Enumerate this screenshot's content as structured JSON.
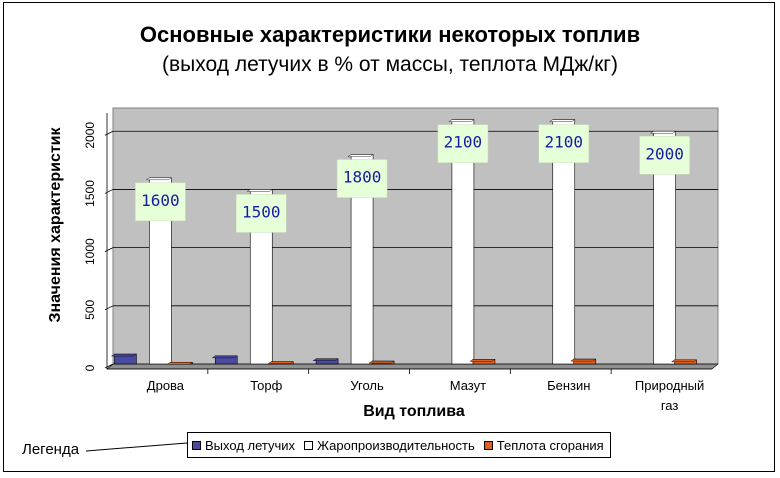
{
  "chart_data": {
    "type": "bar",
    "title": "Основные характеристики некоторых топлив",
    "subtitle": "(выход летучих в % от массы, теплота МДж/кг)",
    "xlabel": "Вид топлива",
    "ylabel": "Значения характеристик",
    "ylim": [
      0,
      2200
    ],
    "yticks": [
      0,
      500,
      1000,
      1500,
      2000
    ],
    "grid": true,
    "categories": [
      "Дрова",
      "Торф",
      "Уголь",
      "Мазут",
      "Бензин",
      "Природный газ"
    ],
    "series": [
      {
        "name": "Выход летучих",
        "values": [
          85,
          70,
          45,
          0,
          0,
          0
        ],
        "color": "#4a4aa0"
      },
      {
        "name": "Жаропроизводительность",
        "values": [
          1600,
          1500,
          1800,
          2100,
          2100,
          2000
        ],
        "color": "#ffffff",
        "data_labels": [
          "1600",
          "1500",
          "1800",
          "2100",
          "2100",
          "2000"
        ]
      },
      {
        "name": "Теплота сгорания",
        "values": [
          15,
          20,
          25,
          40,
          42,
          36
        ],
        "color": "#e06020"
      }
    ],
    "legend_position": "bottom",
    "legend_callout": "Легенда",
    "colors": {
      "plot_bg": "#c0c0c0",
      "label_bg": "#e6ffd9",
      "label_text": "#1a1aa0"
    }
  }
}
